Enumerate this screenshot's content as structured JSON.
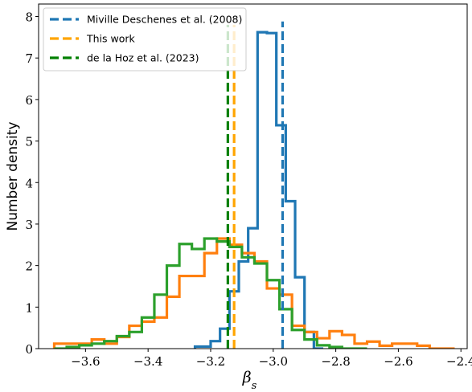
{
  "chart_data": {
    "type": "histogram",
    "xlabel": "β",
    "xlabel_subscript": "s",
    "ylabel": "Number density",
    "xlim": [
      -3.75,
      -2.38
    ],
    "ylim": [
      0,
      8.3
    ],
    "xticks": [
      -3.6,
      -3.4,
      -3.2,
      -3.0,
      -2.8,
      -2.6,
      -2.4
    ],
    "xtick_labels": [
      "−3.6",
      "−3.4",
      "−3.2",
      "−3.0",
      "−2.8",
      "−2.6",
      "−2.4"
    ],
    "yticks": [
      0,
      1,
      2,
      3,
      4,
      5,
      6,
      7,
      8
    ],
    "ytick_labels": [
      "0",
      "1",
      "2",
      "3",
      "4",
      "5",
      "6",
      "7",
      "8"
    ],
    "grid": false,
    "legend": {
      "placement": "top-left",
      "entries": [
        {
          "label": "Miville Deschenes et al. (2008)",
          "color": "#1f77b4",
          "style": "dashed"
        },
        {
          "label": "This work",
          "color": "#ffa500",
          "style": "dashed"
        },
        {
          "label": "de la Hoz et al. (2023)",
          "color": "#008000",
          "style": "dashed"
        }
      ]
    },
    "series": [
      {
        "color": "#1f77b4",
        "bin_edges": [
          -3.25,
          -3.2,
          -3.17,
          -3.14,
          -3.11,
          -3.08,
          -3.05,
          -3.02,
          -2.99,
          -2.96,
          -2.93,
          -2.9,
          -2.87,
          -2.84
        ],
        "values": [
          0.05,
          0.18,
          0.48,
          1.38,
          2.1,
          2.9,
          7.62,
          7.6,
          5.38,
          3.55,
          1.72,
          0.4,
          0.0
        ]
      },
      {
        "color": "#ff7f0e",
        "bin_edges": [
          -3.7,
          -3.66,
          -3.62,
          -3.58,
          -3.54,
          -3.5,
          -3.46,
          -3.42,
          -3.38,
          -3.34,
          -3.3,
          -3.26,
          -3.22,
          -3.18,
          -3.14,
          -3.1,
          -3.06,
          -3.02,
          -2.98,
          -2.94,
          -2.9,
          -2.86,
          -2.82,
          -2.78,
          -2.74,
          -2.7,
          -2.66,
          -2.62,
          -2.58,
          -2.54,
          -2.5,
          -2.46,
          -2.42
        ],
        "values": [
          0.12,
          0.12,
          0.12,
          0.22,
          0.12,
          0.28,
          0.55,
          0.65,
          0.75,
          1.25,
          1.75,
          1.75,
          2.3,
          2.65,
          2.5,
          2.3,
          2.1,
          1.45,
          1.3,
          0.55,
          0.4,
          0.25,
          0.42,
          0.33,
          0.12,
          0.17,
          0.07,
          0.12,
          0.12,
          0.07,
          0.0,
          0.0
        ]
      },
      {
        "color": "#2ca02c",
        "bin_edges": [
          -3.7,
          -3.66,
          -3.62,
          -3.58,
          -3.54,
          -3.5,
          -3.46,
          -3.42,
          -3.38,
          -3.34,
          -3.3,
          -3.26,
          -3.22,
          -3.18,
          -3.14,
          -3.1,
          -3.06,
          -3.02,
          -2.98,
          -2.94,
          -2.9,
          -2.86,
          -2.82,
          -2.78,
          -2.74,
          -2.7
        ],
        "values": [
          0.0,
          0.04,
          0.08,
          0.12,
          0.18,
          0.3,
          0.4,
          0.75,
          1.3,
          2.0,
          2.52,
          2.4,
          2.65,
          2.58,
          2.45,
          2.2,
          2.05,
          1.65,
          0.95,
          0.45,
          0.22,
          0.08,
          0.04,
          0.0,
          0.0
        ]
      }
    ],
    "vertical_lines": [
      {
        "x": -2.97,
        "color": "#1f77b4",
        "style": "dashed",
        "top": 7.88
      },
      {
        "x": -3.125,
        "color": "#ffa500",
        "style": "dashed",
        "top": 7.8
      },
      {
        "x": -3.145,
        "color": "#008000",
        "style": "dashed",
        "top": 7.8
      }
    ]
  }
}
